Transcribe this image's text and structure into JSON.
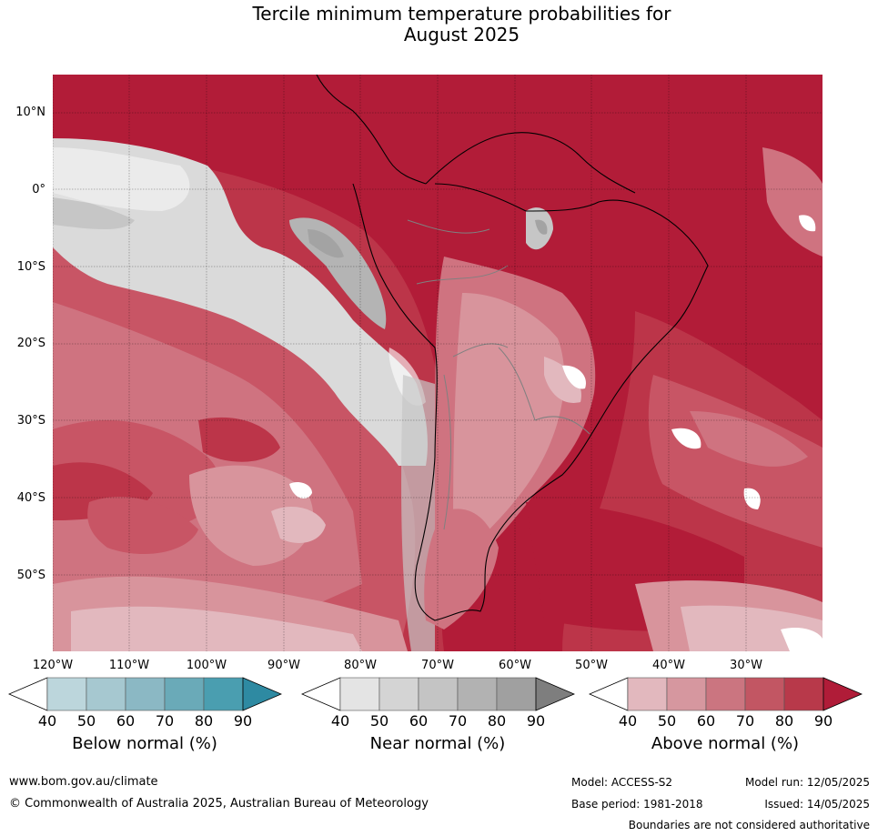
{
  "title_line1": "Tercile minimum temperature probabilities for",
  "title_line2": "August 2025",
  "lat_labels": [
    "10°N",
    "0°",
    "10°S",
    "20°S",
    "30°S",
    "40°S",
    "50°S"
  ],
  "lon_labels": [
    "120°W",
    "110°W",
    "100°W",
    "90°W",
    "80°W",
    "70°W",
    "60°W",
    "50°W",
    "40°W",
    "30°W"
  ],
  "colorbars": {
    "below": {
      "title": "Below normal (%)",
      "ticks": [
        "40",
        "50",
        "60",
        "70",
        "80",
        "90"
      ],
      "colors": [
        "#ffffff",
        "#bcd6dc",
        "#a6c8d0",
        "#8bb8c4",
        "#6aaab8",
        "#4a9eb0",
        "#2e8aa2"
      ]
    },
    "near": {
      "title": "Near normal (%)",
      "ticks": [
        "40",
        "50",
        "60",
        "70",
        "80",
        "90"
      ],
      "colors": [
        "#ffffff",
        "#e4e4e4",
        "#d4d4d4",
        "#c4c4c4",
        "#b2b2b2",
        "#a0a0a0",
        "#7e7e7e"
      ]
    },
    "above": {
      "title": "Above normal (%)",
      "ticks": [
        "40",
        "50",
        "60",
        "70",
        "80",
        "90"
      ],
      "colors": [
        "#ffffff",
        "#e2b8be",
        "#d6979f",
        "#cb7580",
        "#c25663",
        "#b8394a",
        "#b01c38"
      ]
    }
  },
  "map_colors": {
    "above_90": "#b21c38",
    "above_80": "#bc3549",
    "above_70": "#c85565",
    "above_60": "#cf7380",
    "above_50": "#d8949c",
    "above_40": "#e2b8be",
    "near_50": "#dadada",
    "near_60": "#c6c6c6",
    "near_70": "#b4b4b4",
    "near_80": "#a3a3a3",
    "white": "#ffffff"
  },
  "footer": {
    "url": "www.bom.gov.au/climate",
    "copyright": "© Commonwealth of Australia 2025, Australian Bureau of Meteorology",
    "model": "Model: ACCESS-S2",
    "model_run": "Model run: 12/05/2025",
    "base_period": "Base period: 1981-2018",
    "issued": "Issued: 14/05/2025",
    "disclaimer": "Boundaries are not considered authoritative"
  }
}
